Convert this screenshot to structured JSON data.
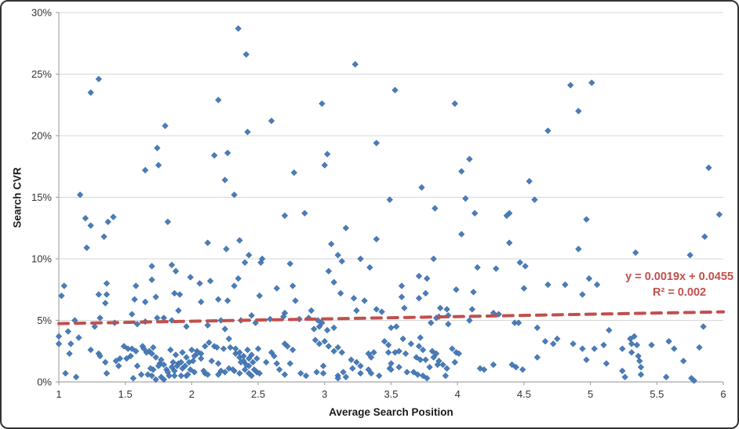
{
  "chart_data": {
    "type": "scatter",
    "title": "",
    "xlabel": "Average Search Position",
    "ylabel": "Search CVR",
    "xlim": [
      1,
      6
    ],
    "ylim_percent": [
      0,
      30
    ],
    "grid": "horizontal",
    "legend": "none",
    "x_ticks": [
      1,
      1.5,
      2,
      2.5,
      3,
      3.5,
      4,
      4.5,
      5,
      5.5,
      6
    ],
    "x_tick_labels": [
      "1",
      "1.5",
      "2",
      "2.5",
      "3",
      "3.5",
      "4",
      "4.5",
      "5",
      "5.5",
      "6"
    ],
    "y_ticks_percent": [
      0,
      5,
      10,
      15,
      20,
      25,
      30
    ],
    "y_tick_labels": [
      "0%",
      "5%",
      "10%",
      "15%",
      "20%",
      "25%",
      "30%"
    ],
    "trendline": {
      "slope": 0.0019,
      "intercept": 0.0455,
      "style": "dashed",
      "equation_line1": "y = 0.0019x + 0.0455",
      "equation_line2": "R² = 0.002"
    },
    "colors": {
      "marker_fill": "#4A7EBB",
      "marker_stroke": "#38679F",
      "trend": "#C0504D",
      "gridline": "#D6D6D6",
      "axis_line": "#A6A6A6",
      "tick_label": "#333333"
    },
    "points_x_y_percent": [
      [
        1.3,
        24.6
      ],
      [
        1.24,
        23.5
      ],
      [
        2.2,
        22.9
      ],
      [
        1.8,
        20.8
      ],
      [
        1.74,
        19.0
      ],
      [
        2.17,
        18.4
      ],
      [
        1.75,
        17.6
      ],
      [
        1.65,
        17.2
      ],
      [
        2.25,
        16.4
      ],
      [
        1.16,
        15.2
      ],
      [
        1.2,
        13.3
      ],
      [
        1.24,
        12.7
      ],
      [
        1.41,
        13.4
      ],
      [
        1.37,
        13.0
      ],
      [
        1.34,
        11.8
      ],
      [
        1.82,
        13.0
      ],
      [
        1.21,
        10.9
      ],
      [
        2.12,
        11.3
      ],
      [
        2.26,
        10.8
      ],
      [
        2.35,
        28.7
      ],
      [
        2.41,
        26.6
      ],
      [
        3.23,
        25.8
      ],
      [
        2.98,
        22.6
      ],
      [
        2.6,
        21.2
      ],
      [
        2.42,
        20.3
      ],
      [
        3.39,
        19.4
      ],
      [
        2.27,
        18.6
      ],
      [
        3.02,
        18.5
      ],
      [
        3.0,
        17.6
      ],
      [
        2.77,
        17.0
      ],
      [
        2.32,
        15.2
      ],
      [
        3.49,
        14.8
      ],
      [
        2.7,
        13.5
      ],
      [
        2.85,
        13.7
      ],
      [
        3.16,
        12.5
      ],
      [
        2.36,
        11.5
      ],
      [
        3.39,
        11.6
      ],
      [
        3.05,
        11.2
      ],
      [
        2.43,
        10.3
      ],
      [
        3.1,
        10.3
      ],
      [
        2.53,
        10.0
      ],
      [
        3.27,
        10.0
      ],
      [
        3.53,
        23.7
      ],
      [
        3.98,
        22.6
      ],
      [
        4.68,
        20.4
      ],
      [
        4.09,
        18.1
      ],
      [
        4.03,
        17.1
      ],
      [
        4.54,
        16.3
      ],
      [
        3.73,
        15.8
      ],
      [
        4.06,
        14.9
      ],
      [
        4.58,
        14.8
      ],
      [
        3.83,
        14.1
      ],
      [
        4.13,
        13.7
      ],
      [
        4.37,
        13.5
      ],
      [
        4.39,
        13.7
      ],
      [
        4.03,
        12.0
      ],
      [
        4.39,
        11.3
      ],
      [
        3.82,
        10.0
      ],
      [
        4.85,
        24.1
      ],
      [
        5.01,
        24.3
      ],
      [
        4.91,
        22.0
      ],
      [
        5.89,
        17.4
      ],
      [
        4.97,
        13.2
      ],
      [
        5.97,
        13.6
      ],
      [
        5.86,
        11.8
      ],
      [
        4.91,
        10.8
      ],
      [
        5.34,
        10.5
      ],
      [
        5.75,
        10.3
      ],
      [
        1.04,
        7.8
      ],
      [
        1.02,
        7.0
      ],
      [
        1.7,
        9.4
      ],
      [
        1.85,
        9.5
      ],
      [
        1.88,
        9.0
      ],
      [
        1.99,
        8.5
      ],
      [
        2.06,
        8.0
      ],
      [
        2.14,
        8.2
      ],
      [
        1.7,
        8.3
      ],
      [
        1.36,
        8.0
      ],
      [
        1.3,
        7.1
      ],
      [
        1.36,
        7.1
      ],
      [
        1.58,
        7.8
      ],
      [
        1.57,
        6.7
      ],
      [
        1.35,
        6.4
      ],
      [
        1.87,
        7.2
      ],
      [
        1.91,
        7.1
      ],
      [
        1.65,
        6.5
      ],
      [
        1.73,
        6.9
      ],
      [
        1.9,
        5.8
      ],
      [
        2.07,
        6.5
      ],
      [
        2.2,
        6.7
      ],
      [
        1.55,
        5.5
      ],
      [
        1.31,
        5.2
      ],
      [
        1.12,
        5.0
      ],
      [
        1.27,
        4.5
      ],
      [
        1.42,
        4.8
      ],
      [
        1.65,
        4.9
      ],
      [
        1.59,
        4.7
      ],
      [
        1.74,
        5.2
      ],
      [
        1.79,
        5.2
      ],
      [
        1.85,
        5.0
      ],
      [
        1.96,
        4.5
      ],
      [
        2.12,
        4.6
      ],
      [
        2.22,
        5.0
      ],
      [
        2.4,
        9.7
      ],
      [
        2.52,
        9.7
      ],
      [
        2.74,
        9.6
      ],
      [
        3.13,
        9.8
      ],
      [
        3.34,
        9.3
      ],
      [
        2.35,
        8.4
      ],
      [
        2.32,
        7.8
      ],
      [
        2.27,
        6.6
      ],
      [
        2.51,
        7.0
      ],
      [
        2.64,
        7.6
      ],
      [
        2.76,
        7.8
      ],
      [
        2.78,
        6.6
      ],
      [
        3.03,
        9.0
      ],
      [
        3.07,
        8.1
      ],
      [
        3.12,
        7.2
      ],
      [
        3.22,
        6.8
      ],
      [
        3.3,
        6.6
      ],
      [
        3.39,
        5.9
      ],
      [
        3.43,
        5.7
      ],
      [
        3.24,
        5.8
      ],
      [
        2.9,
        5.8
      ],
      [
        2.7,
        5.6
      ],
      [
        2.37,
        5.0
      ],
      [
        2.45,
        5.4
      ],
      [
        2.48,
        4.8
      ],
      [
        2.59,
        5.1
      ],
      [
        2.69,
        5.3
      ],
      [
        2.81,
        5.1
      ],
      [
        2.88,
        5.2
      ],
      [
        2.95,
        5.0
      ],
      [
        2.98,
        4.8
      ],
      [
        2.96,
        4.5
      ],
      [
        3.02,
        4.2
      ],
      [
        3.07,
        4.4
      ],
      [
        2.92,
        4.3
      ],
      [
        4.15,
        9.3
      ],
      [
        4.29,
        9.2
      ],
      [
        4.47,
        9.7
      ],
      [
        4.51,
        9.4
      ],
      [
        3.71,
        8.6
      ],
      [
        3.77,
        8.4
      ],
      [
        3.58,
        7.8
      ],
      [
        3.58,
        6.9
      ],
      [
        3.71,
        6.8
      ],
      [
        3.76,
        7.2
      ],
      [
        3.99,
        7.5
      ],
      [
        4.12,
        7.3
      ],
      [
        4.5,
        7.6
      ],
      [
        4.68,
        7.9
      ],
      [
        3.6,
        6.0
      ],
      [
        3.87,
        6.0
      ],
      [
        3.92,
        5.9
      ],
      [
        3.93,
        5.4
      ],
      [
        4.11,
        5.9
      ],
      [
        4.27,
        5.6
      ],
      [
        4.31,
        5.5
      ],
      [
        3.86,
        5.3
      ],
      [
        3.8,
        4.8
      ],
      [
        3.84,
        5.2
      ],
      [
        3.93,
        4.7
      ],
      [
        4.09,
        5.0
      ],
      [
        4.43,
        4.8
      ],
      [
        4.46,
        4.8
      ],
      [
        4.6,
        4.4
      ],
      [
        3.54,
        4.5
      ],
      [
        3.5,
        4.4
      ],
      [
        4.81,
        7.9
      ],
      [
        4.99,
        8.4
      ],
      [
        5.05,
        7.9
      ],
      [
        4.94,
        7.1
      ],
      [
        5.85,
        4.5
      ],
      [
        5.14,
        4.2
      ],
      [
        1.0,
        3.7
      ],
      [
        1.07,
        4.1
      ],
      [
        1.15,
        3.6
      ],
      [
        1.0,
        3.1
      ],
      [
        1.09,
        3.1
      ],
      [
        1.24,
        2.6
      ],
      [
        1.3,
        2.3
      ],
      [
        1.08,
        2.3
      ],
      [
        1.05,
        0.7
      ],
      [
        1.13,
        0.4
      ],
      [
        1.35,
        1.6
      ],
      [
        1.31,
        2.1
      ],
      [
        1.36,
        0.7
      ],
      [
        1.43,
        1.7
      ],
      [
        1.45,
        1.3
      ],
      [
        1.49,
        2.9
      ],
      [
        1.52,
        2.7
      ],
      [
        1.46,
        1.9
      ],
      [
        1.63,
        2.9
      ],
      [
        1.68,
        2.5
      ],
      [
        1.71,
        1.0
      ],
      [
        1.7,
        0.5
      ],
      [
        1.67,
        0.6
      ],
      [
        1.76,
        1.5
      ],
      [
        1.79,
        1.4
      ],
      [
        1.81,
        1.0
      ],
      [
        1.83,
        0.5
      ],
      [
        1.85,
        1.2
      ],
      [
        1.87,
        0.9
      ],
      [
        1.9,
        1.5
      ],
      [
        1.93,
        1.1
      ],
      [
        1.96,
        0.5
      ],
      [
        1.99,
        1.0
      ],
      [
        2.02,
        2.1
      ],
      [
        2.07,
        2.3
      ],
      [
        2.04,
        2.5
      ],
      [
        2.1,
        2.9
      ],
      [
        2.13,
        3.2
      ],
      [
        2.17,
        2.9
      ],
      [
        2.2,
        0.6
      ],
      [
        2.1,
        0.7
      ],
      [
        1.56,
        0.3
      ],
      [
        1.62,
        0.6
      ],
      [
        1.59,
        1.3
      ],
      [
        1.69,
        1.1
      ],
      [
        1.73,
        0.2
      ],
      [
        1.77,
        0.4
      ],
      [
        1.79,
        0.2
      ],
      [
        1.82,
        0.8
      ],
      [
        1.75,
        1.3
      ],
      [
        1.77,
        1.8
      ],
      [
        1.73,
        2.0
      ],
      [
        1.7,
        2.3
      ],
      [
        1.66,
        2.4
      ],
      [
        1.58,
        2.5
      ],
      [
        1.54,
        2.1
      ],
      [
        1.51,
        1.9
      ],
      [
        1.55,
        2.7
      ],
      [
        1.64,
        2.7
      ],
      [
        1.71,
        2.8
      ],
      [
        1.84,
        2.6
      ],
      [
        1.88,
        2.2
      ],
      [
        1.86,
        1.6
      ],
      [
        1.89,
        1.3
      ],
      [
        1.92,
        1.6
      ],
      [
        1.95,
        1.3
      ],
      [
        1.98,
        1.6
      ],
      [
        2.01,
        1.7
      ],
      [
        1.96,
        2.0
      ],
      [
        1.93,
        2.4
      ],
      [
        2.0,
        2.6
      ],
      [
        2.04,
        2.3
      ],
      [
        2.07,
        1.9
      ],
      [
        2.09,
        0.9
      ],
      [
        2.12,
        0.6
      ],
      [
        2.02,
        0.8
      ],
      [
        1.97,
        0.6
      ],
      [
        1.92,
        0.5
      ],
      [
        1.87,
        0.5
      ],
      [
        2.19,
        2.8
      ],
      [
        2.24,
        2.7
      ],
      [
        2.29,
        2.8
      ],
      [
        2.33,
        2.3
      ],
      [
        2.36,
        2.0
      ],
      [
        2.39,
        1.7
      ],
      [
        2.2,
        1.5
      ],
      [
        2.15,
        1.7
      ],
      [
        2.22,
        0.9
      ],
      [
        2.28,
        1.1
      ],
      [
        2.32,
        0.9
      ],
      [
        2.36,
        0.7
      ],
      [
        2.4,
        1.0
      ],
      [
        2.43,
        1.3
      ],
      [
        2.46,
        1.6
      ],
      [
        2.49,
        1.9
      ],
      [
        2.45,
        2.2
      ],
      [
        2.42,
        2.6
      ],
      [
        2.5,
        2.7
      ],
      [
        2.49,
        0.8
      ],
      [
        2.45,
        0.5
      ],
      [
        2.25,
        4.3
      ],
      [
        2.28,
        3.5
      ],
      [
        2.33,
        2.7
      ],
      [
        2.36,
        2.4
      ],
      [
        2.39,
        2.1
      ],
      [
        2.37,
        1.6
      ],
      [
        2.41,
        1.4
      ],
      [
        2.43,
        1.9
      ],
      [
        2.47,
        1.0
      ],
      [
        2.51,
        0.7
      ],
      [
        2.43,
        0.7
      ],
      [
        2.31,
        1.0
      ],
      [
        2.25,
        0.8
      ],
      [
        2.56,
        1.6
      ],
      [
        2.6,
        2.4
      ],
      [
        2.62,
        2.1
      ],
      [
        2.64,
        1.5
      ],
      [
        2.66,
        1.0
      ],
      [
        2.7,
        0.6
      ],
      [
        2.74,
        1.5
      ],
      [
        2.76,
        2.6
      ],
      [
        2.72,
        2.9
      ],
      [
        2.7,
        3.1
      ],
      [
        2.82,
        0.7
      ],
      [
        2.86,
        0.5
      ],
      [
        2.94,
        0.8
      ],
      [
        2.99,
        0.7
      ],
      [
        2.99,
        1.3
      ],
      [
        3.1,
        0.5
      ],
      [
        3.14,
        0.8
      ],
      [
        3.16,
        0.4
      ],
      [
        3.1,
        0.3
      ],
      [
        3.21,
        1.1
      ],
      [
        3.27,
        0.7
      ],
      [
        3.33,
        1.0
      ],
      [
        3.35,
        0.7
      ],
      [
        3.41,
        0.5
      ],
      [
        3.49,
        1.1
      ],
      [
        3.48,
        2.4
      ],
      [
        3.37,
        2.4
      ],
      [
        2.93,
        3.4
      ],
      [
        2.96,
        3.1
      ],
      [
        3.0,
        3.3
      ],
      [
        3.03,
        2.9
      ],
      [
        3.07,
        2.5
      ],
      [
        3.13,
        2.4
      ],
      [
        3.1,
        2.8
      ],
      [
        3.2,
        1.8
      ],
      [
        3.24,
        1.6
      ],
      [
        3.27,
        1.3
      ],
      [
        3.33,
        2.3
      ],
      [
        3.35,
        2.0
      ],
      [
        3.48,
        3.0
      ],
      [
        3.45,
        3.3
      ],
      [
        3.59,
        3.5
      ],
      [
        3.72,
        3.6
      ],
      [
        3.65,
        3.1
      ],
      [
        3.56,
        2.5
      ],
      [
        3.61,
        2.3
      ],
      [
        3.53,
        2.4
      ],
      [
        3.71,
        2.9
      ],
      [
        3.74,
        2.6
      ],
      [
        3.69,
        2.0
      ],
      [
        3.72,
        1.8
      ],
      [
        3.76,
        1.8
      ],
      [
        3.81,
        2.5
      ],
      [
        3.84,
        2.3
      ],
      [
        3.82,
        2.0
      ],
      [
        3.86,
        1.7
      ],
      [
        3.85,
        1.4
      ],
      [
        3.79,
        1.2
      ],
      [
        3.89,
        1.4
      ],
      [
        3.92,
        1.1
      ],
      [
        3.96,
        2.7
      ],
      [
        3.99,
        2.4
      ],
      [
        4.01,
        2.3
      ],
      [
        3.98,
        1.6
      ],
      [
        3.67,
        0.8
      ],
      [
        3.7,
        0.6
      ],
      [
        3.74,
        0.5
      ],
      [
        3.62,
        0.8
      ],
      [
        3.56,
        1.2
      ],
      [
        3.5,
        1.5
      ],
      [
        3.5,
        1.0
      ],
      [
        3.77,
        0.3
      ],
      [
        3.91,
        0.5
      ],
      [
        4.17,
        1.1
      ],
      [
        4.2,
        1.0
      ],
      [
        4.27,
        1.4
      ],
      [
        4.41,
        1.4
      ],
      [
        4.44,
        1.2
      ],
      [
        4.49,
        1.0
      ],
      [
        4.6,
        2.0
      ],
      [
        4.72,
        3.1
      ],
      [
        4.66,
        3.3
      ],
      [
        4.75,
        3.5
      ],
      [
        4.87,
        3.1
      ],
      [
        4.94,
        2.7
      ],
      [
        5.03,
        2.7
      ],
      [
        4.97,
        1.8
      ],
      [
        5.1,
        3.0
      ],
      [
        5.12,
        1.5
      ],
      [
        5.24,
        2.7
      ],
      [
        5.24,
        0.9
      ],
      [
        5.26,
        0.4
      ],
      [
        5.3,
        3.5
      ],
      [
        5.31,
        3.1
      ],
      [
        5.31,
        2.4
      ],
      [
        5.33,
        3.7
      ],
      [
        5.35,
        3.0
      ],
      [
        5.36,
        2.1
      ],
      [
        5.37,
        1.7
      ],
      [
        5.38,
        1.2
      ],
      [
        5.38,
        0.6
      ],
      [
        5.46,
        3.0
      ],
      [
        5.57,
        0.4
      ],
      [
        5.59,
        3.3
      ],
      [
        5.63,
        2.7
      ],
      [
        5.7,
        1.7
      ],
      [
        5.76,
        0.3
      ],
      [
        5.82,
        2.8
      ],
      [
        5.78,
        0.1
      ]
    ]
  }
}
